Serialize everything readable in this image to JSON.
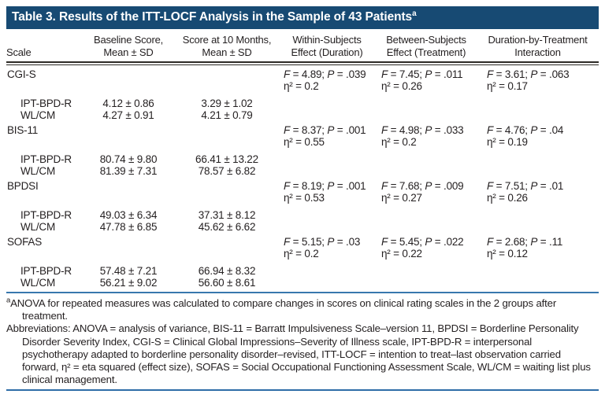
{
  "title": {
    "text": "Table 3. Results of the ITT-LOCF Analysis in the Sample of 43 Patients",
    "superscript": "a"
  },
  "colors": {
    "title_bar": "#174a73",
    "title_text": "#ffffff",
    "body_text": "#231f20",
    "header_rule": "#2d2a26",
    "blue_rule": "#3878ae"
  },
  "header": {
    "scale": "Scale",
    "baseline_l1": "Baseline Score,",
    "baseline_l2": "Mean ± SD",
    "month10_l1": "Score at 10 Months,",
    "month10_l2": "Mean ± SD",
    "within_l1": "Within-Subjects",
    "within_l2": "Effect (Duration)",
    "between_l1": "Between-Subjects",
    "between_l2": "Effect (Treatment)",
    "interaction_l1": "Duration-by-Treatment",
    "interaction_l2": "Interaction"
  },
  "groups": [
    {
      "scale": "CGI-S",
      "within": {
        "f": "F",
        "frest": " = 4.89; ",
        "p": "P",
        "prest": " = .039",
        "eta": "η² = 0.2"
      },
      "between": {
        "f": "F",
        "frest": " = 7.45; ",
        "p": "P",
        "prest": " = .011",
        "eta": "η² = 0.26"
      },
      "interaction": {
        "f": "F",
        "frest": " = 3.61; ",
        "p": "P",
        "prest": " = .063",
        "eta": "η² = 0.17"
      },
      "rows": [
        {
          "label": "IPT-BPD-R",
          "baseline": "4.12 ± 0.86",
          "month10": "3.29 ± 1.02"
        },
        {
          "label": "WL/CM",
          "baseline": "4.27 ± 0.91",
          "month10": "4.21 ± 0.79"
        }
      ]
    },
    {
      "scale": "BIS-11",
      "within": {
        "f": "F",
        "frest": " = 8.37; ",
        "p": "P",
        "prest": " = .001",
        "eta": "η² = 0.55"
      },
      "between": {
        "f": "F",
        "frest": " = 4.98; ",
        "p": "P",
        "prest": " = .033",
        "eta": "η² = 0.2"
      },
      "interaction": {
        "f": "F",
        "frest": " = 4.76; ",
        "p": "P",
        "prest": " = .04",
        "eta": "η² = 0.19"
      },
      "rows": [
        {
          "label": "IPT-BPD-R",
          "baseline": "80.74 ± 9.80",
          "month10": "66.41 ± 13.22"
        },
        {
          "label": "WL/CM",
          "baseline": "81.39 ± 7.31",
          "month10": "78.57 ± 6.82"
        }
      ]
    },
    {
      "scale": "BPDSI",
      "within": {
        "f": "F",
        "frest": " = 8.19; ",
        "p": "P",
        "prest": " = .001",
        "eta": "η² = 0.53"
      },
      "between": {
        "f": "F",
        "frest": " = 7.68; ",
        "p": "P",
        "prest": " = .009",
        "eta": "η² = 0.27"
      },
      "interaction": {
        "f": "F",
        "frest": " = 7.51; ",
        "p": "P",
        "prest": " = .01",
        "eta": "η² = 0.26"
      },
      "rows": [
        {
          "label": "IPT-BPD-R",
          "baseline": "49.03 ± 6.34",
          "month10": "37.31 ± 8.12"
        },
        {
          "label": "WL/CM",
          "baseline": "47.78 ± 6.85",
          "month10": "45.62 ± 6.62"
        }
      ]
    },
    {
      "scale": "SOFAS",
      "within": {
        "f": "F",
        "frest": " = 5.15; ",
        "p": "P",
        "prest": " = .03",
        "eta": "η² = 0.2"
      },
      "between": {
        "f": "F",
        "frest": " = 5.45; ",
        "p": "P",
        "prest": " = .022",
        "eta": "η² = 0.22"
      },
      "interaction": {
        "f": "F",
        "frest": " = 2.68; ",
        "p": "P",
        "prest": " = .11",
        "eta": "η² = 0.12"
      },
      "rows": [
        {
          "label": "IPT-BPD-R",
          "baseline": "57.48 ± 7.21",
          "month10": "66.94 ± 8.32"
        },
        {
          "label": "WL/CM",
          "baseline": "56.21 ± 9.02",
          "month10": "56.60 ± 8.61"
        }
      ]
    }
  ],
  "footnotes": {
    "marker": "a",
    "note": "ANOVA for repeated measures was calculated to compare changes in scores on clinical rating scales in the 2 groups after treatment.",
    "abbreviations": "Abbreviations: ANOVA = analysis of variance, BIS-11 = Barratt Impulsiveness Scale–version 11, BPDSI = Borderline Personality Disorder Severity Index, CGI-S = Clinical Global Impressions–Severity of Illness scale, IPT-BPD-R = interpersonal psychotherapy adapted to borderline personality disorder–revised, ITT-LOCF = intention to treat–last observation carried forward, η² = eta squared (effect size), SOFAS = Social Occupational Functioning Assessment Scale, WL/CM = waiting list plus clinical management."
  }
}
